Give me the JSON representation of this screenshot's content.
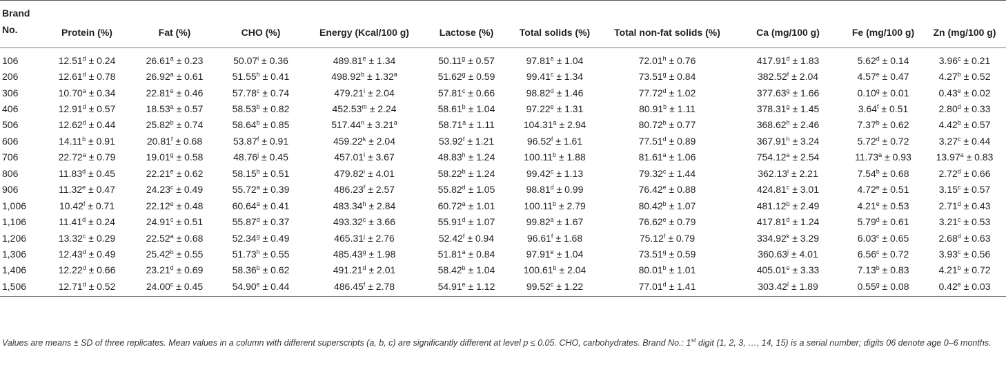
{
  "headers": [
    [
      "Brand",
      "No."
    ],
    [
      "Protein (%)"
    ],
    [
      "Fat (%)"
    ],
    [
      "CHO (%)"
    ],
    [
      "Energy (Kcal/100 g)"
    ],
    [
      "Lactose (%)"
    ],
    [
      "Total solids (%)"
    ],
    [
      "Total non-fat solids (%)"
    ],
    [
      "Ca (mg/100 g)"
    ],
    [
      "Fe (mg/100 g)"
    ],
    [
      "Zn (mg/100 g)"
    ]
  ],
  "rows": [
    [
      "106",
      [
        "12.51",
        "d",
        "± 0.24"
      ],
      [
        "26.61",
        "a",
        "± 0.23"
      ],
      [
        "50.07",
        "i",
        "± 0.36"
      ],
      [
        "489.81",
        "e",
        "± 1.34"
      ],
      [
        "50.11",
        "g",
        "± 0.57"
      ],
      [
        "97.81",
        "e",
        "± 1.04"
      ],
      [
        "72.01",
        "h",
        "± 0.76"
      ],
      [
        "417.91",
        "d",
        "± 1.83"
      ],
      [
        "5.62",
        "d",
        "± 0.14"
      ],
      [
        "3.96",
        "c",
        "± 0.21"
      ]
    ],
    [
      "206",
      [
        "12.61",
        "d",
        "± 0.78"
      ],
      [
        "26.92",
        "a",
        "± 0.61"
      ],
      [
        "51.55",
        "h",
        "± 0.41"
      ],
      [
        "498.92",
        "b",
        "± 1.32",
        "a"
      ],
      [
        "51.62",
        "g",
        "± 0.59"
      ],
      [
        "99.41",
        "c",
        "± 1.34"
      ],
      [
        "73.51",
        "g",
        "± 0.84"
      ],
      [
        "382.52",
        "f",
        "± 2.04"
      ],
      [
        "4.57",
        "e",
        "± 0.47"
      ],
      [
        "4.27",
        "b",
        "± 0.52"
      ]
    ],
    [
      "306",
      [
        "10.70",
        "a",
        "± 0.34"
      ],
      [
        "22.81",
        "e",
        "± 0.46"
      ],
      [
        "57.78",
        "c",
        "± 0.74"
      ],
      [
        "479.21",
        "i",
        "± 2.04"
      ],
      [
        "57.81",
        "c",
        "± 0.66"
      ],
      [
        "98.82",
        "d",
        "± 1.46"
      ],
      [
        "77.72",
        "d",
        "± 1.02"
      ],
      [
        "377.63",
        "g",
        "± 1.66"
      ],
      [
        "0.10",
        "g",
        "± 0.01"
      ],
      [
        "0.43",
        "e",
        "± 0.02"
      ]
    ],
    [
      "406",
      [
        "12.91",
        "d",
        "± 0.57"
      ],
      [
        "18.53",
        "a",
        "± 0.57"
      ],
      [
        "58.53",
        "b",
        "± 0.82"
      ],
      [
        "452.53",
        "m",
        "± 2.24"
      ],
      [
        "58.61",
        "b",
        "± 1.04"
      ],
      [
        "97.22",
        "e",
        "± 1.31"
      ],
      [
        "80.91",
        "b",
        "± 1.11"
      ],
      [
        "378.31",
        "g",
        "± 1.45"
      ],
      [
        "3.64",
        "f",
        "± 0.51"
      ],
      [
        "2.80",
        "d",
        "± 0.33"
      ]
    ],
    [
      "506",
      [
        "12.62",
        "d",
        "± 0.44"
      ],
      [
        "25.82",
        "b",
        "± 0.74"
      ],
      [
        "58.64",
        "b",
        "± 0.85"
      ],
      [
        "517.44",
        "n",
        "± 3.21",
        "a"
      ],
      [
        "58.71",
        "a",
        "± 1.11"
      ],
      [
        "104.31",
        "a",
        "± 2.94"
      ],
      [
        "80.72",
        "b",
        "± 0.77"
      ],
      [
        "368.62",
        "h",
        "± 2.46"
      ],
      [
        "7.37",
        "b",
        "± 0.62"
      ],
      [
        "4.42",
        "b",
        "± 0.57"
      ]
    ],
    [
      "606",
      [
        "14.11",
        "b",
        "± 0.91"
      ],
      [
        "20.81",
        "f",
        "± 0.68"
      ],
      [
        "53.87",
        "f",
        "± 0.91"
      ],
      [
        "459.22",
        "k",
        "± 2.04"
      ],
      [
        "53.92",
        "f",
        "± 1.21"
      ],
      [
        "96.52",
        "f",
        "± 1.61"
      ],
      [
        "77.51",
        "d",
        "± 0.89"
      ],
      [
        "367.91",
        "h",
        "± 3.24"
      ],
      [
        "5.72",
        "d",
        "± 0.72"
      ],
      [
        "3.27",
        "c",
        "± 0.44"
      ]
    ],
    [
      "706",
      [
        "22.72",
        "a",
        "± 0.79"
      ],
      [
        "19.01",
        "g",
        "± 0.58"
      ],
      [
        "48.76",
        "j",
        "± 0.45"
      ],
      [
        "457.01",
        "l",
        "± 3.67"
      ],
      [
        "48.83",
        "h",
        "± 1.24"
      ],
      [
        "100.11",
        "b",
        "± 1.88"
      ],
      [
        "81.61",
        "a",
        "± 1.06"
      ],
      [
        "754.12",
        "a",
        "± 2.54"
      ],
      [
        "11.73",
        "a",
        "± 0.93"
      ],
      [
        "13.97",
        "a",
        "± 0.83"
      ]
    ],
    [
      "806",
      [
        "11.83",
        "d",
        "± 0.45"
      ],
      [
        "22.21",
        "e",
        "± 0.62"
      ],
      [
        "58.15",
        "b",
        "± 0.51"
      ],
      [
        "479.82",
        "i",
        "± 4.01"
      ],
      [
        "58.22",
        "b",
        "± 1.24"
      ],
      [
        "99.42",
        "c",
        "± 1.13"
      ],
      [
        "79.32",
        "c",
        "± 1.44"
      ],
      [
        "362.13",
        "i",
        "± 2.21"
      ],
      [
        "7.54",
        "b",
        "± 0.68"
      ],
      [
        "2.72",
        "d",
        "± 0.66"
      ]
    ],
    [
      "906",
      [
        "11.32",
        "e",
        "± 0.47"
      ],
      [
        "24.23",
        "c",
        "± 0.49"
      ],
      [
        "55.72",
        "a",
        "± 0.39"
      ],
      [
        "486.23",
        "f",
        "± 2.57"
      ],
      [
        "55.82",
        "d",
        "± 1.05"
      ],
      [
        "98.81",
        "d",
        "± 0.99"
      ],
      [
        "76.42",
        "e",
        "± 0.88"
      ],
      [
        "424.81",
        "c",
        "± 3.01"
      ],
      [
        "4.72",
        "e",
        "± 0.51"
      ],
      [
        "3.15",
        "c",
        "± 0.57"
      ]
    ],
    [
      "1,006",
      [
        "10.42",
        "f",
        "± 0.71"
      ],
      [
        "22.12",
        "e",
        "± 0.48"
      ],
      [
        "60.64",
        "a",
        "± 0.41"
      ],
      [
        "483.34",
        "h",
        "± 2.84"
      ],
      [
        "60.72",
        "a",
        "± 1.01"
      ],
      [
        "100.11",
        "b",
        "± 2.79"
      ],
      [
        "80.42",
        "b",
        "± 1.07"
      ],
      [
        "481.12",
        "b",
        "± 2.49"
      ],
      [
        "4.21",
        "e",
        "± 0.53"
      ],
      [
        "2.71",
        "d",
        "± 0.43"
      ]
    ],
    [
      "1,106",
      [
        "11.41",
        "d",
        "± 0.24"
      ],
      [
        "24.91",
        "c",
        "± 0.51"
      ],
      [
        "55.87",
        "d",
        "± 0.37"
      ],
      [
        "493.32",
        "c",
        "± 3.66"
      ],
      [
        "55.91",
        "d",
        "± 1.07"
      ],
      [
        "99.82",
        "a",
        "± 1.67"
      ],
      [
        "76.62",
        "e",
        "± 0.79"
      ],
      [
        "417.81",
        "d",
        "± 1.24"
      ],
      [
        "5.79",
        "d",
        "± 0.61"
      ],
      [
        "3.21",
        "c",
        "± 0.53"
      ]
    ],
    [
      "1,206",
      [
        "13.32",
        "c",
        "± 0.29"
      ],
      [
        "22.52",
        "a",
        "± 0.68"
      ],
      [
        "52.34",
        "g",
        "± 0.49"
      ],
      [
        "465.31",
        "j",
        "± 2.76"
      ],
      [
        "52.42",
        "f",
        "± 0.94"
      ],
      [
        "96.61",
        "f",
        "± 1.68"
      ],
      [
        "75.12",
        "f",
        "± 0.79"
      ],
      [
        "334.92",
        "k",
        "± 3.29"
      ],
      [
        "6.03",
        "c",
        "± 0.65"
      ],
      [
        "2.68",
        "d",
        "± 0.63"
      ]
    ],
    [
      "1,306",
      [
        "12.43",
        "d",
        "± 0.49"
      ],
      [
        "25.42",
        "b",
        "± 0.55"
      ],
      [
        "51.73",
        "h",
        "± 0.55"
      ],
      [
        "485.43",
        "g",
        "± 1.98"
      ],
      [
        "51.81",
        "a",
        "± 0.84"
      ],
      [
        "97.91",
        "e",
        "± 1.04"
      ],
      [
        "73.51",
        "g",
        "± 0.59"
      ],
      [
        "360.63",
        "j",
        "± 4.01"
      ],
      [
        "6.56",
        "c",
        "± 0.72"
      ],
      [
        "3.93",
        "c",
        "± 0.56"
      ]
    ],
    [
      "1,406",
      [
        "12.22",
        "d",
        "± 0.66"
      ],
      [
        "23.21",
        "d",
        "± 0.69"
      ],
      [
        "58.36",
        "b",
        "± 0.62"
      ],
      [
        "491.21",
        "d",
        "± 2.01"
      ],
      [
        "58.42",
        "b",
        "± 1.04"
      ],
      [
        "100.61",
        "b",
        "± 2.04"
      ],
      [
        "80.01",
        "b",
        "± 1.01"
      ],
      [
        "405.01",
        "e",
        "± 3.33"
      ],
      [
        "7.13",
        "b",
        "± 0.83"
      ],
      [
        "4.21",
        "b",
        "± 0.72"
      ]
    ],
    [
      "1,506",
      [
        "12.71",
        "d",
        "± 0.52"
      ],
      [
        "24.00",
        "c",
        "± 0.45"
      ],
      [
        "54.90",
        "e",
        "± 0.44"
      ],
      [
        "486.45",
        "f",
        "± 2.78"
      ],
      [
        "54.91",
        "e",
        "± 1.12"
      ],
      [
        "99.52",
        "c",
        "± 1.22"
      ],
      [
        "77.01",
        "d",
        "± 1.41"
      ],
      [
        "303.42",
        "l",
        "± 1.89"
      ],
      [
        "0.55",
        "g",
        "± 0.08"
      ],
      [
        "0.42",
        "e",
        "± 0.03"
      ]
    ]
  ],
  "note": {
    "part1": "Values are means ± SD of three replicates. Mean values in a column with different superscripts (a, b, c) are significantly different at level p ≤ 0.05. CHO, carbohydrates. Brand No.: 1",
    "sup": "st",
    "part2": " digit (1, 2, 3, …, 14, 15) is a serial number; digits 06 denote age 0–6 months."
  }
}
